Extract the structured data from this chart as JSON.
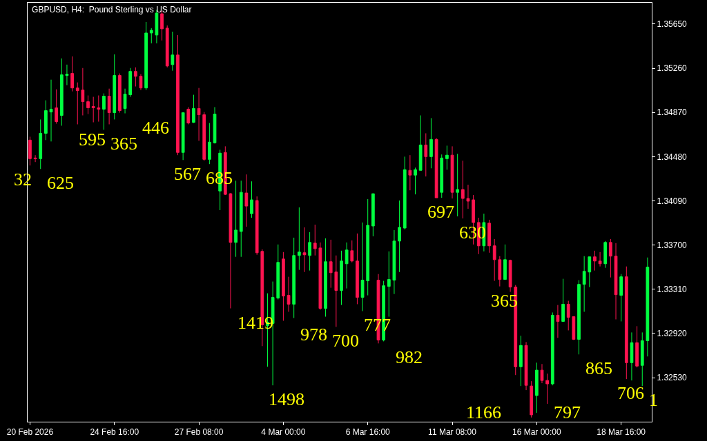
{
  "chart_data": {
    "type": "candlestick",
    "title": "GBPUSD, H4:  Pound Sterling vs US Dollar",
    "categories": [
      "20 Feb 2026",
      null,
      null,
      null,
      null,
      null,
      null,
      null,
      null,
      null,
      null,
      null,
      null,
      null,
      null,
      null,
      "24 Feb 16:00",
      null,
      null,
      null,
      null,
      null,
      null,
      null,
      null,
      null,
      null,
      null,
      null,
      null,
      null,
      null,
      "27 Feb 08:00",
      null,
      null,
      null,
      null,
      null,
      null,
      null,
      null,
      null,
      null,
      null,
      null,
      null,
      null,
      null,
      "4 Mar 00:00",
      null,
      null,
      null,
      null,
      null,
      null,
      null,
      null,
      null,
      null,
      null,
      null,
      null,
      null,
      null,
      "6 Mar 16:00",
      null,
      null,
      null,
      null,
      null,
      null,
      null,
      null,
      null,
      null,
      null,
      null,
      null,
      null,
      null,
      "11 Mar 08:00",
      null,
      null,
      null,
      null,
      null,
      null,
      null,
      null,
      null,
      null,
      null,
      null,
      null,
      null,
      null,
      "16 Mar 00:00",
      null,
      null,
      null,
      null,
      null,
      null,
      null,
      null,
      null,
      null,
      null,
      null,
      null,
      null,
      null,
      "18 Mar 16:00",
      null,
      null,
      null,
      null,
      null
    ],
    "ohlc": [
      [
        1.34626,
        1.34656,
        1.34402,
        1.34462
      ],
      [
        1.34468,
        1.34493,
        1.34432,
        1.34462
      ],
      [
        1.34462,
        1.34808,
        1.34371,
        1.34686
      ],
      [
        1.34686,
        1.34977,
        1.34626,
        1.34886
      ],
      [
        1.34874,
        1.35159,
        1.34614,
        1.34899
      ],
      [
        1.34911,
        1.35074,
        1.34771,
        1.34789
      ],
      [
        1.34844,
        1.35347,
        1.34753,
        1.35202
      ],
      [
        1.35196,
        1.35292,
        1.35111,
        1.35208
      ],
      [
        1.35214,
        1.35365,
        1.35056,
        1.35086
      ],
      [
        1.35086,
        1.35135,
        1.34765,
        1.35062
      ],
      [
        1.35068,
        1.35262,
        1.34844,
        1.34965
      ],
      [
        1.34965,
        1.3502,
        1.34856,
        1.34911
      ],
      [
        1.34923,
        1.35008,
        1.34783,
        1.34911
      ],
      [
        1.34911,
        1.3502,
        1.34789,
        1.34899
      ],
      [
        1.34899,
        1.35038,
        1.34717,
        1.35014
      ],
      [
        1.35014,
        1.3508,
        1.34765,
        1.34868
      ],
      [
        1.34868,
        1.35383,
        1.34808,
        1.35196
      ],
      [
        1.35196,
        1.35214,
        1.34868,
        1.34886
      ],
      [
        1.34905,
        1.3508,
        1.34862,
        1.35032
      ],
      [
        1.35026,
        1.35262,
        1.35008,
        1.35232
      ],
      [
        1.35232,
        1.35268,
        1.35099,
        1.35189
      ],
      [
        1.35189,
        1.35208,
        1.35068,
        1.35086
      ],
      [
        1.35086,
        1.35668,
        1.35068,
        1.35571
      ],
      [
        1.35571,
        1.35614,
        1.3548,
        1.35595
      ],
      [
        1.35553,
        1.35777,
        1.3548,
        1.35747
      ],
      [
        1.35741,
        1.35765,
        1.35505,
        1.35608
      ],
      [
        1.35614,
        1.35638,
        1.35268,
        1.3528
      ],
      [
        1.35292,
        1.35583,
        1.35238,
        1.35377
      ],
      [
        1.35377,
        1.35553,
        1.34493,
        1.34517
      ],
      [
        1.34517,
        1.34868,
        1.3445,
        1.34868
      ],
      [
        1.34899,
        1.34917,
        1.34765,
        1.34777
      ],
      [
        1.34783,
        1.35026,
        1.34777,
        1.34905
      ],
      [
        1.34905,
        1.35086,
        1.3462,
        1.3485
      ],
      [
        1.3485,
        1.34874,
        1.34444,
        1.34456
      ],
      [
        1.34456,
        1.34777,
        1.34414,
        1.34608
      ],
      [
        1.34602,
        1.34917,
        1.34596,
        1.34856
      ],
      [
        1.34177,
        1.34541,
        1.34008,
        1.34511
      ],
      [
        1.34517,
        1.34571,
        1.34141,
        1.34147
      ],
      [
        1.34153,
        1.34159,
        1.33141,
        1.33723
      ],
      [
        1.33723,
        1.34268,
        1.33596,
        1.33832
      ],
      [
        1.3382,
        1.34268,
        1.33596,
        1.34165
      ],
      [
        1.34159,
        1.34323,
        1.33862,
        1.34044
      ],
      [
        1.33977,
        1.34262,
        1.33941,
        1.34099
      ],
      [
        1.34093,
        1.34129,
        1.33614,
        1.33632
      ],
      [
        1.33644,
        1.33662,
        1.32808,
        1.32996
      ],
      [
        1.3299,
        1.33274,
        1.32626,
        1.3302
      ],
      [
        1.33008,
        1.33378,
        1.32462,
        1.33238
      ],
      [
        1.33232,
        1.33705,
        1.3322,
        1.33547
      ],
      [
        1.33577,
        1.33638,
        1.33032,
        1.3325
      ],
      [
        1.33256,
        1.3342,
        1.33111,
        1.33178
      ],
      [
        1.33178,
        1.33765,
        1.33056,
        1.33608
      ],
      [
        1.33608,
        1.34032,
        1.33481,
        1.33638
      ],
      [
        1.33632,
        1.33856,
        1.33462,
        1.33614
      ],
      [
        1.33608,
        1.33814,
        1.33475,
        1.33723
      ],
      [
        1.33717,
        1.3388,
        1.33608,
        1.33668
      ],
      [
        1.33674,
        1.33723,
        1.33129,
        1.33141
      ],
      [
        1.33141,
        1.33759,
        1.33068,
        1.33553
      ],
      [
        1.33553,
        1.33747,
        1.33323,
        1.33456
      ],
      [
        1.33462,
        1.33608,
        1.32978,
        1.33299
      ],
      [
        1.33299,
        1.3365,
        1.33171,
        1.33559
      ],
      [
        1.33535,
        1.33723,
        1.33317,
        1.33656
      ],
      [
        1.3365,
        1.33741,
        1.33547,
        1.33559
      ],
      [
        1.33559,
        1.33802,
        1.33178,
        1.33238
      ],
      [
        1.33238,
        1.33899,
        1.33117,
        1.3339
      ],
      [
        1.33384,
        1.34105,
        1.33256,
        1.33874
      ],
      [
        1.33868,
        1.34153,
        1.33777,
        1.34153
      ],
      [
        1.3339,
        1.33444,
        1.32832,
        1.32862
      ],
      [
        1.32862,
        1.33384,
        1.3285,
        1.33341
      ],
      [
        1.33335,
        1.33644,
        1.33068,
        1.33396
      ],
      [
        1.3339,
        1.33832,
        1.33268,
        1.33735
      ],
      [
        1.33735,
        1.34093,
        1.33462,
        1.33856
      ],
      [
        1.3385,
        1.3448,
        1.33838,
        1.34365
      ],
      [
        1.34359,
        1.34493,
        1.34183,
        1.34317
      ],
      [
        1.34317,
        1.34383,
        1.34147,
        1.34365
      ],
      [
        1.34359,
        1.34844,
        1.34359,
        1.34583
      ],
      [
        1.34583,
        1.34686,
        1.34305,
        1.3448
      ],
      [
        1.3448,
        1.3482,
        1.34377,
        1.34632
      ],
      [
        1.34632,
        1.34644,
        1.34117,
        1.34117
      ],
      [
        1.34165,
        1.34499,
        1.34117,
        1.34468
      ],
      [
        1.34462,
        1.34577,
        1.34365,
        1.34493
      ],
      [
        1.34493,
        1.34571,
        1.34111,
        1.34165
      ],
      [
        1.34165,
        1.34505,
        1.33953,
        1.3419
      ],
      [
        1.3419,
        1.34444,
        1.33935,
        1.34111
      ],
      [
        1.34111,
        1.34232,
        1.3402,
        1.34087
      ],
      [
        1.34099,
        1.34141,
        1.33705,
        1.33899
      ],
      [
        1.33899,
        1.33941,
        1.3362,
        1.33693
      ],
      [
        1.33693,
        1.33977,
        1.33644,
        1.33899
      ],
      [
        1.33893,
        1.33923,
        1.33632,
        1.33693
      ],
      [
        1.33693,
        1.33753,
        1.33384,
        1.33571
      ],
      [
        1.33571,
        1.33602,
        1.33335,
        1.33396
      ],
      [
        1.33396,
        1.33705,
        1.33396,
        1.33571
      ],
      [
        1.33565,
        1.33571,
        1.33287,
        1.33329
      ],
      [
        1.33329,
        1.33347,
        1.32553,
        1.32626
      ],
      [
        1.32626,
        1.32899,
        1.32456,
        1.32814
      ],
      [
        1.32814,
        1.32844,
        1.3242,
        1.32462
      ],
      [
        1.32456,
        1.32499,
        1.32178,
        1.32202
      ],
      [
        1.32372,
        1.32662,
        1.3222,
        1.32596
      ],
      [
        1.32596,
        1.3265,
        1.32481,
        1.32505
      ],
      [
        1.32505,
        1.32565,
        1.32299,
        1.32475
      ],
      [
        1.32475,
        1.33105,
        1.32462,
        1.33081
      ],
      [
        1.33081,
        1.33171,
        1.32881,
        1.33026
      ],
      [
        1.33026,
        1.33402,
        1.33026,
        1.33178
      ],
      [
        1.33178,
        1.33208,
        1.32947,
        1.33062
      ],
      [
        1.33068,
        1.33068,
        1.32862,
        1.32868
      ],
      [
        1.32868,
        1.3339,
        1.32735,
        1.33353
      ],
      [
        1.33353,
        1.33602,
        1.33111,
        1.33468
      ],
      [
        1.33462,
        1.33596,
        1.33329,
        1.33596
      ],
      [
        1.33596,
        1.3365,
        1.33475,
        1.33559
      ],
      [
        1.33559,
        1.33638,
        1.33511,
        1.33535
      ],
      [
        1.33535,
        1.33735,
        1.33499,
        1.33723
      ],
      [
        1.33723,
        1.33753,
        1.33414,
        1.33602
      ],
      [
        1.33602,
        1.33717,
        1.33044,
        1.33262
      ],
      [
        1.33256,
        1.33444,
        1.33026,
        1.3342
      ],
      [
        1.3342,
        1.33511,
        1.32517,
        1.32662
      ],
      [
        1.32662,
        1.32929,
        1.32505,
        1.32838
      ],
      [
        1.32838,
        1.32984,
        1.3262,
        1.32632
      ],
      [
        1.32638,
        1.32929,
        1.32456,
        1.32856
      ],
      [
        1.32856,
        1.3359,
        1.32717,
        1.33505
      ]
    ],
    "colors": [
      "#ff1450",
      "#ff1450",
      "#00ff40",
      "#00ff40",
      "#00ff40",
      "#ff1450",
      "#00ff40",
      "#00ff40",
      "#ff1450",
      "#ff1450",
      "#ff1450",
      "#ff1450",
      "#ff1450",
      "#ff1450",
      "#00ff40",
      "#ff1450",
      "#00ff40",
      "#ff1450",
      "#00ff40",
      "#00ff40",
      "#ff1450",
      "#ff1450",
      "#00ff40",
      "#00ff40",
      "#00ff40",
      "#ff1450",
      "#ff1450",
      "#00ff40",
      "#ff1450",
      "#00ff40",
      "#ff1450",
      "#00ff40",
      "#ff1450",
      "#ff1450",
      "#00ff40",
      "#00ff40",
      "#00ff40",
      "#ff1450",
      "#ff1450",
      "#00ff40",
      "#00ff40",
      "#ff1450",
      "#00ff40",
      "#ff1450",
      "#ff1450",
      "#00ff40",
      "#00ff40",
      "#00ff40",
      "#ff1450",
      "#ff1450",
      "#00ff40",
      "#00ff40",
      "#ff1450",
      "#00ff40",
      "#ff1450",
      "#ff1450",
      "#00ff40",
      "#ff1450",
      "#ff1450",
      "#00ff40",
      "#00ff40",
      "#ff1450",
      "#ff1450",
      "#00ff40",
      "#00ff40",
      "#00ff40",
      "#ff1450",
      "#00ff40",
      "#00ff40",
      "#00ff40",
      "#00ff40",
      "#00ff40",
      "#ff1450",
      "#00ff40",
      "#00ff40",
      "#ff1450",
      "#00ff40",
      "#ff1450",
      "#00ff40",
      "#00ff40",
      "#ff1450",
      "#00ff40",
      "#ff1450",
      "#ff1450",
      "#ff1450",
      "#ff1450",
      "#00ff40",
      "#ff1450",
      "#ff1450",
      "#ff1450",
      "#00ff40",
      "#ff1450",
      "#ff1450",
      "#00ff40",
      "#ff1450",
      "#ff1450",
      "#00ff40",
      "#ff1450",
      "#ff1450",
      "#00ff40",
      "#ff1450",
      "#00ff40",
      "#ff1450",
      "#ff1450",
      "#00ff40",
      "#00ff40",
      "#00ff40",
      "#ff1450",
      "#ff1450",
      "#00ff40",
      "#ff1450",
      "#ff1450",
      "#00ff40",
      "#ff1450",
      "#00ff40",
      "#ff1450",
      "#00ff40",
      "#00ff40"
    ],
    "ylim": [
      1.32141,
      1.35838
    ],
    "yticks": [
      {
        "value": 1.3253,
        "label": "1.32530"
      },
      {
        "value": 1.3292,
        "label": "1.32920"
      },
      {
        "value": 1.3331,
        "label": "1.33310"
      },
      {
        "value": 1.337,
        "label": "1.33700"
      },
      {
        "value": 1.3409,
        "label": "1.34090"
      },
      {
        "value": 1.3448,
        "label": "1.34480"
      },
      {
        "value": 1.3487,
        "label": "1.34870"
      },
      {
        "value": 1.3526,
        "label": "1.35260"
      },
      {
        "value": 1.3565,
        "label": "1.35650"
      }
    ],
    "annotations": [
      "32",
      "625",
      "595",
      "365",
      "446",
      "567",
      "685",
      "1419",
      "1498",
      "978",
      "700",
      "777",
      "982",
      "697",
      "630",
      "365",
      "1166",
      "797",
      "865",
      "706",
      "1"
    ]
  }
}
